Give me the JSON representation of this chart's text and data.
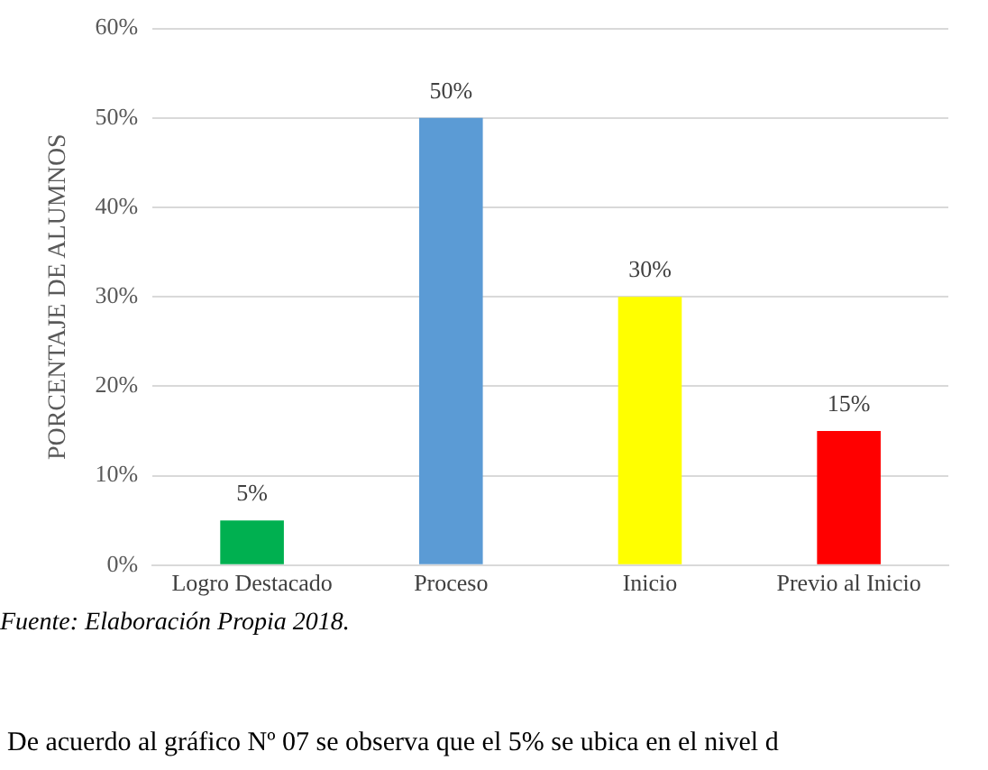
{
  "chart_data": {
    "type": "bar",
    "ylabel": "PORCENTAJE DE ALUMNOS",
    "categories": [
      "Logro Destacado",
      "Proceso",
      "Inicio",
      "Previo al Inicio"
    ],
    "values": [
      5,
      50,
      30,
      15
    ],
    "colors": [
      "#00b050",
      "#5b9bd5",
      "#ffff00",
      "#ff0000"
    ],
    "value_labels": [
      "5%",
      "50%",
      "30%",
      "15%"
    ],
    "ylim": [
      0,
      60
    ],
    "yticks": [
      {
        "value": 0,
        "label": "0%"
      },
      {
        "value": 10,
        "label": "10%"
      },
      {
        "value": 20,
        "label": "20%"
      },
      {
        "value": 30,
        "label": "30%"
      },
      {
        "value": 40,
        "label": "40%"
      },
      {
        "value": 50,
        "label": "50%"
      },
      {
        "value": 60,
        "label": "60%"
      }
    ],
    "grid": "y",
    "annotations": [
      "Fuente: Elaboración Propia 2018.",
      "De acuerdo al gráfico Nº 07 se observa que el 5% se ubica en el nivel d"
    ]
  }
}
